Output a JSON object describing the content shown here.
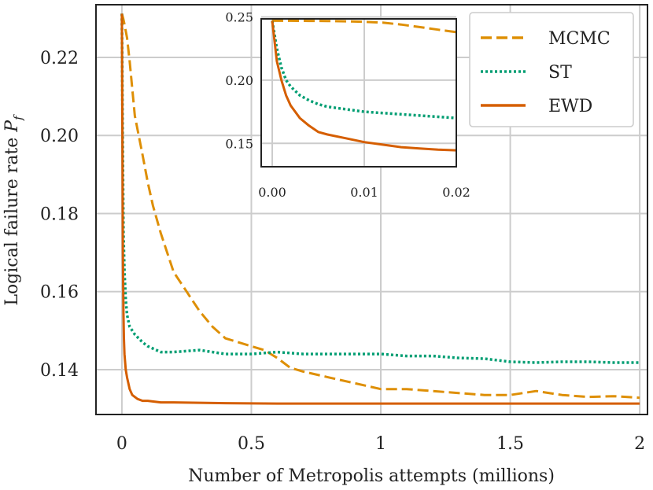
{
  "chart_data": {
    "type": "line",
    "xlabel": "Number of Metropolis attempts (millions)",
    "ylabel_prefix": "Logical failure rate ",
    "ylabel_symbol": "P",
    "ylabel_subscript": "f",
    "xlim": [
      -0.1,
      2.03
    ],
    "ylim": [
      0.1285,
      0.2335
    ],
    "xticks": [
      0,
      0.5,
      1,
      1.5,
      2
    ],
    "xtick_labels": [
      "0",
      "0.5",
      "1",
      "1.5",
      "2"
    ],
    "yticks": [
      0.14,
      0.16,
      0.18,
      0.2,
      0.22
    ],
    "ytick_labels": [
      "0.14",
      "0.16",
      "0.18",
      "0.20",
      "0.22"
    ],
    "grid": true,
    "legend_position": "top-right",
    "series": [
      {
        "name": "MCMC",
        "color": "#de8f05",
        "style": "dashed",
        "x": [
          0,
          0.005,
          0.01,
          0.02,
          0.03,
          0.05,
          0.08,
          0.1,
          0.12,
          0.15,
          0.2,
          0.25,
          0.3,
          0.35,
          0.4,
          0.45,
          0.5,
          0.55,
          0.6,
          0.65,
          0.7,
          0.8,
          0.9,
          1.0,
          1.1,
          1.2,
          1.3,
          1.4,
          1.5,
          1.6,
          1.7,
          1.8,
          1.9,
          2.0
        ],
        "y": [
          0.2312,
          0.23,
          0.2285,
          0.225,
          0.219,
          0.205,
          0.195,
          0.188,
          0.182,
          0.175,
          0.165,
          0.16,
          0.155,
          0.151,
          0.148,
          0.147,
          0.146,
          0.145,
          0.143,
          0.1405,
          0.1395,
          0.138,
          0.1365,
          0.135,
          0.135,
          0.1345,
          0.134,
          0.1335,
          0.1335,
          0.1345,
          0.1335,
          0.133,
          0.1332,
          0.1328
        ]
      },
      {
        "name": "ST",
        "color": "#029e73",
        "style": "dotted",
        "x": [
          0,
          0.003,
          0.006,
          0.01,
          0.015,
          0.02,
          0.03,
          0.05,
          0.08,
          0.1,
          0.15,
          0.2,
          0.3,
          0.4,
          0.5,
          0.6,
          0.7,
          0.8,
          0.9,
          1.0,
          1.1,
          1.2,
          1.3,
          1.4,
          1.5,
          1.6,
          1.7,
          1.8,
          1.9,
          2.0
        ],
        "y": [
          0.2312,
          0.2,
          0.175,
          0.165,
          0.158,
          0.154,
          0.151,
          0.149,
          0.147,
          0.146,
          0.1445,
          0.1445,
          0.145,
          0.144,
          0.144,
          0.1445,
          0.144,
          0.144,
          0.144,
          0.144,
          0.1435,
          0.1435,
          0.143,
          0.1428,
          0.142,
          0.1418,
          0.142,
          0.142,
          0.1418,
          0.1418
        ]
      },
      {
        "name": "EWD",
        "color": "#d55e00",
        "style": "solid",
        "x": [
          0,
          0.002,
          0.004,
          0.006,
          0.008,
          0.01,
          0.015,
          0.02,
          0.03,
          0.04,
          0.06,
          0.08,
          0.1,
          0.15,
          0.2,
          0.3,
          0.4,
          0.6,
          0.8,
          1.0,
          1.5,
          2.0
        ],
        "y": [
          0.2312,
          0.2,
          0.17,
          0.155,
          0.148,
          0.144,
          0.14,
          0.138,
          0.135,
          0.1335,
          0.1325,
          0.132,
          0.132,
          0.1316,
          0.1316,
          0.1315,
          0.1314,
          0.1313,
          0.1313,
          0.1313,
          0.1313,
          0.1313
        ]
      }
    ],
    "inset": {
      "xlim": [
        -0.0012,
        0.02
      ],
      "ylim": [
        0.1315,
        0.2485
      ],
      "xticks": [
        0.0,
        0.01,
        0.02
      ],
      "xtick_labels": [
        "0.00",
        "0.01",
        "0.02"
      ],
      "yticks": [
        0.15,
        0.2,
        0.25
      ],
      "ytick_labels": [
        "0.15",
        "0.20",
        "0.25"
      ],
      "series": [
        {
          "name": "MCMC",
          "color": "#de8f05",
          "style": "dashed",
          "x": [
            0,
            0.002,
            0.004,
            0.006,
            0.008,
            0.01,
            0.012,
            0.014,
            0.016,
            0.018,
            0.02
          ],
          "y": [
            0.247,
            0.247,
            0.2469,
            0.2468,
            0.2466,
            0.2462,
            0.2455,
            0.244,
            0.242,
            0.24,
            0.238
          ]
        },
        {
          "name": "ST",
          "color": "#029e73",
          "style": "dotted",
          "x": [
            0,
            0.0005,
            0.001,
            0.0015,
            0.002,
            0.003,
            0.004,
            0.005,
            0.006,
            0.008,
            0.01,
            0.012,
            0.014,
            0.016,
            0.018,
            0.02
          ],
          "y": [
            0.247,
            0.225,
            0.21,
            0.2,
            0.195,
            0.188,
            0.184,
            0.181,
            0.179,
            0.177,
            0.175,
            0.174,
            0.173,
            0.172,
            0.171,
            0.17
          ]
        },
        {
          "name": "EWD",
          "color": "#d55e00",
          "style": "solid",
          "x": [
            0,
            0.0005,
            0.001,
            0.0015,
            0.002,
            0.003,
            0.004,
            0.005,
            0.006,
            0.008,
            0.01,
            0.012,
            0.014,
            0.016,
            0.018,
            0.02
          ],
          "y": [
            0.247,
            0.215,
            0.2,
            0.188,
            0.18,
            0.17,
            0.164,
            0.159,
            0.157,
            0.154,
            0.151,
            0.149,
            0.147,
            0.146,
            0.145,
            0.1445
          ]
        }
      ]
    }
  }
}
